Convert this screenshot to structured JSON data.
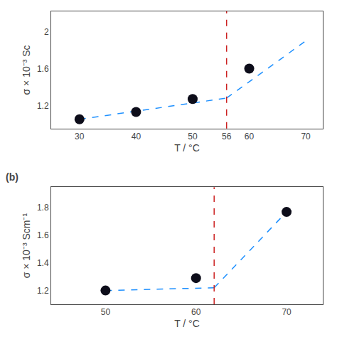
{
  "chart_data": [
    {
      "type": "scatter",
      "xlabel": "T / °C",
      "ylabel": "σ × 10⁻³ Sc",
      "xlim": [
        25,
        73
      ],
      "ylim": [
        0.95,
        2.22
      ],
      "xticks": [
        30,
        40,
        50,
        56,
        60,
        70
      ],
      "yticks": [
        1.2,
        1.6,
        2.0
      ],
      "grid": false,
      "series": [
        {
          "type": "line",
          "line_style": "dashed",
          "color": "#1E90FF",
          "x": [
            30,
            56
          ],
          "values": [
            1.05,
            1.28
          ]
        },
        {
          "type": "line",
          "line_style": "dashed",
          "color": "#1E90FF",
          "x": [
            56,
            70
          ],
          "values": [
            1.28,
            1.9
          ]
        },
        {
          "type": "scatter",
          "marker": "circle",
          "color": "#0d0d1a",
          "x": [
            30,
            40,
            50,
            60
          ],
          "values": [
            1.05,
            1.13,
            1.27,
            1.6
          ]
        }
      ],
      "annotations": [
        {
          "type": "vline",
          "x": 56,
          "color": "#cc2222",
          "line_style": "dashed"
        }
      ]
    },
    {
      "type": "scatter",
      "title": "(b)",
      "xlabel": "T / °C",
      "ylabel": "σ × 10⁻³ Scm⁻¹",
      "xlim": [
        44,
        74
      ],
      "ylim": [
        1.1,
        1.95
      ],
      "xticks": [
        50,
        60,
        70
      ],
      "yticks": [
        1.2,
        1.4,
        1.6,
        1.8
      ],
      "grid": false,
      "series": [
        {
          "type": "line",
          "line_style": "dashed",
          "color": "#1E90FF",
          "x": [
            50,
            62
          ],
          "values": [
            1.2,
            1.22
          ]
        },
        {
          "type": "line",
          "line_style": "dashed",
          "color": "#1E90FF",
          "x": [
            62,
            70
          ],
          "values": [
            1.22,
            1.77
          ]
        },
        {
          "type": "scatter",
          "marker": "circle",
          "color": "#0d0d1a",
          "x": [
            50,
            60,
            70
          ],
          "values": [
            1.2,
            1.29,
            1.77
          ]
        }
      ],
      "annotations": [
        {
          "type": "vline",
          "x": 62,
          "color": "#cc2222",
          "line_style": "dashed"
        }
      ]
    }
  ]
}
